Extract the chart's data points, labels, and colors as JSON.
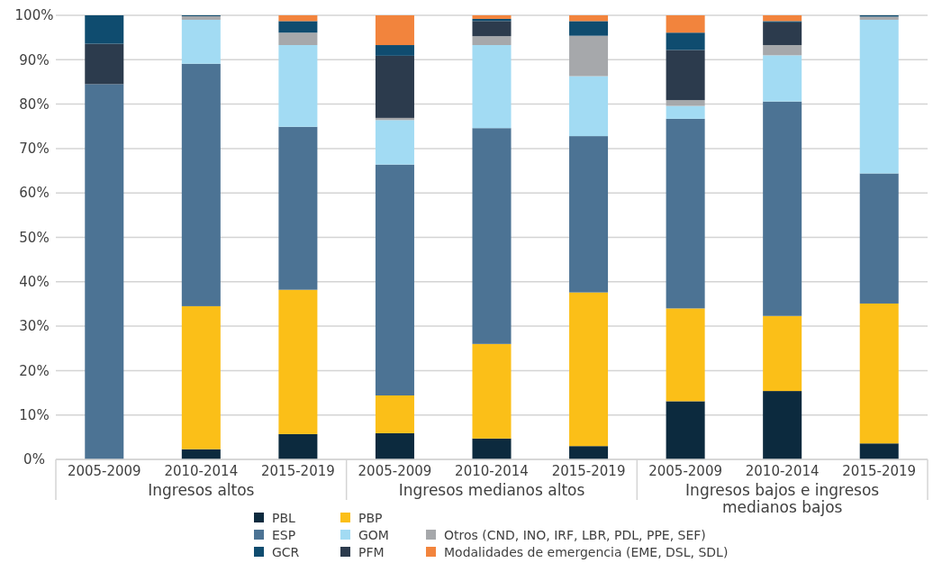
{
  "chart_data": {
    "type": "bar",
    "stacked": true,
    "categories": [
      "2005-2009",
      "2010-2014",
      "2015-2019",
      "2005-2009",
      "2010-2014",
      "2015-2019",
      "2005-2009",
      "2010-2014",
      "2015-2019"
    ],
    "annotations": [
      "Ingresos altos",
      "Ingresos medianos altos",
      "Ingresos bajos e ingresos medianos bajos"
    ],
    "series": [
      {
        "name": "PBL",
        "color": "#0c2a3e",
        "values": [
          0,
          2.3,
          5.7,
          5.9,
          4.7,
          3.0,
          13.1,
          15.4,
          3.6
        ]
      },
      {
        "name": "PBP",
        "color": "#fbbf18",
        "values": [
          0,
          32.2,
          32.5,
          8.5,
          21.3,
          34.6,
          20.9,
          16.9,
          31.5
        ]
      },
      {
        "name": "ESP",
        "color": "#4c7394",
        "values": [
          84.5,
          54.6,
          36.7,
          52.0,
          48.6,
          35.2,
          42.7,
          48.3,
          29.3
        ]
      },
      {
        "name": "GOM",
        "color": "#a2dbf3",
        "values": [
          0,
          9.9,
          18.4,
          10.0,
          18.7,
          13.5,
          2.9,
          10.4,
          34.6
        ]
      },
      {
        "name": "Otros (CND, INO, IRF, LBR, PDL, PPE, SEF)",
        "color": "#a6a8ab",
        "values": [
          0,
          0.8,
          2.8,
          0.5,
          2.0,
          9.1,
          1.3,
          2.3,
          0.7
        ]
      },
      {
        "name": "PFM",
        "color": "#2c3b4d",
        "values": [
          9.1,
          0,
          0,
          14.0,
          3.4,
          0,
          11.3,
          5.1,
          0
        ]
      },
      {
        "name": "GCR",
        "color": "#0f4c6f",
        "values": [
          6.4,
          0.2,
          2.6,
          2.4,
          0.5,
          3.3,
          3.9,
          0.3,
          0.3
        ]
      },
      {
        "name": "Modalidades de emergencia (EME, DSL, SDL)",
        "color": "#f2843d",
        "values": [
          0,
          0,
          1.3,
          6.7,
          0.8,
          1.3,
          3.9,
          1.3,
          0
        ]
      }
    ],
    "ylim": [
      0,
      100
    ],
    "yticks": [
      {
        "value": 0,
        "label": "0%"
      },
      {
        "value": 10,
        "label": "10%"
      },
      {
        "value": 20,
        "label": "20%"
      },
      {
        "value": 30,
        "label": "30%"
      },
      {
        "value": 40,
        "label": "40%"
      },
      {
        "value": 50,
        "label": "50%"
      },
      {
        "value": 60,
        "label": "60%"
      },
      {
        "value": 70,
        "label": "70%"
      },
      {
        "value": 80,
        "label": "80%"
      },
      {
        "value": 90,
        "label": "90%"
      },
      {
        "value": 100,
        "label": "100%"
      }
    ],
    "grid": "y",
    "legend": "bottom"
  }
}
